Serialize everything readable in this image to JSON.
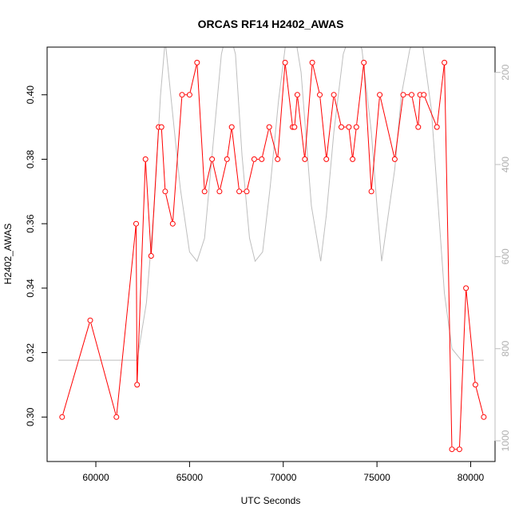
{
  "chart_data": {
    "type": "line",
    "title": "ORCAS RF14 H2402_AWAS",
    "xlabel": "UTC Seconds",
    "ylabel": "H2402_AWAS",
    "xlim": [
      57400,
      81300
    ],
    "ylim": [
      0.2862,
      0.4148
    ],
    "y2lim": [
      1045,
      145
    ],
    "x_ticks": [
      60000,
      65000,
      70000,
      75000,
      80000
    ],
    "y_ticks": [
      0.3,
      0.32,
      0.34,
      0.36,
      0.38,
      0.4
    ],
    "y2_ticks": [
      200,
      400,
      600,
      800,
      1000
    ],
    "grid": false,
    "colors": {
      "series": "#ff0000",
      "secondary": "#bebebe"
    },
    "series": [
      {
        "values": [
          [
            58200,
            0.3
          ],
          [
            59700,
            0.33
          ],
          [
            61100,
            0.3
          ],
          [
            62150,
            0.36
          ],
          [
            62200,
            0.31
          ],
          [
            62650,
            0.38
          ],
          [
            62950,
            0.35
          ],
          [
            63350,
            0.39
          ],
          [
            63500,
            0.39
          ],
          [
            63700,
            0.37
          ],
          [
            64100,
            0.36
          ],
          [
            64600,
            0.4
          ],
          [
            65000,
            0.4
          ],
          [
            65400,
            0.41
          ],
          [
            65800,
            0.37
          ],
          [
            66200,
            0.38
          ],
          [
            66600,
            0.37
          ],
          [
            67000,
            0.38
          ],
          [
            67250,
            0.39
          ],
          [
            67650,
            0.37
          ],
          [
            68050,
            0.37
          ],
          [
            68450,
            0.38
          ],
          [
            68850,
            0.38
          ],
          [
            69250,
            0.39
          ],
          [
            69700,
            0.38
          ],
          [
            70100,
            0.41
          ],
          [
            70500,
            0.39
          ],
          [
            70600,
            0.39
          ],
          [
            70750,
            0.4
          ],
          [
            71150,
            0.38
          ],
          [
            71550,
            0.41
          ],
          [
            71950,
            0.4
          ],
          [
            72300,
            0.38
          ],
          [
            72700,
            0.4
          ],
          [
            73100,
            0.39
          ],
          [
            73500,
            0.39
          ],
          [
            73700,
            0.38
          ],
          [
            73900,
            0.39
          ],
          [
            74300,
            0.41
          ],
          [
            74700,
            0.37
          ],
          [
            75150,
            0.4
          ],
          [
            75950,
            0.38
          ],
          [
            76400,
            0.4
          ],
          [
            76850,
            0.4
          ],
          [
            77200,
            0.39
          ],
          [
            77300,
            0.4
          ],
          [
            77500,
            0.4
          ],
          [
            78200,
            0.39
          ],
          [
            78600,
            0.41
          ],
          [
            79000,
            0.29
          ],
          [
            79400,
            0.29
          ],
          [
            79750,
            0.34
          ],
          [
            80250,
            0.31
          ],
          [
            80700,
            0.3
          ]
        ]
      },
      {
        "values": [
          [
            58000,
            825
          ],
          [
            62200,
            825
          ],
          [
            62700,
            700
          ],
          [
            63100,
            500
          ],
          [
            63450,
            250
          ],
          [
            63700,
            130
          ],
          [
            64000,
            250
          ],
          [
            64500,
            450
          ],
          [
            65000,
            590
          ],
          [
            65400,
            610
          ],
          [
            65800,
            560
          ],
          [
            66200,
            380
          ],
          [
            66700,
            160
          ],
          [
            67050,
            100
          ],
          [
            67450,
            160
          ],
          [
            67800,
            380
          ],
          [
            68200,
            560
          ],
          [
            68500,
            610
          ],
          [
            68900,
            590
          ],
          [
            69300,
            450
          ],
          [
            69750,
            260
          ],
          [
            70150,
            130
          ],
          [
            70550,
            100
          ],
          [
            70950,
            200
          ],
          [
            71500,
            490
          ],
          [
            72000,
            610
          ],
          [
            72300,
            510
          ],
          [
            72700,
            330
          ],
          [
            73200,
            160
          ],
          [
            73700,
            100
          ],
          [
            74200,
            150
          ],
          [
            74700,
            330
          ],
          [
            75000,
            490
          ],
          [
            75250,
            610
          ],
          [
            75600,
            510
          ],
          [
            75950,
            410
          ],
          [
            76300,
            250
          ],
          [
            76750,
            150
          ],
          [
            77300,
            100
          ],
          [
            77900,
            280
          ],
          [
            78200,
            450
          ],
          [
            78600,
            680
          ],
          [
            79000,
            800
          ],
          [
            79500,
            825
          ],
          [
            80700,
            825
          ]
        ]
      }
    ]
  }
}
